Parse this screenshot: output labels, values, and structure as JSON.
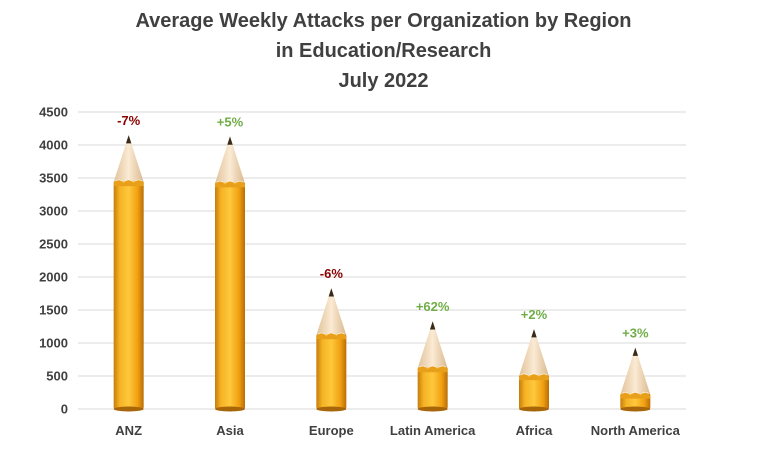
{
  "chart_data": {
    "type": "bar",
    "title": [
      "Average Weekly Attacks per Organization by Region",
      "in Education/Research",
      "July 2022"
    ],
    "xlabel": "",
    "ylabel": "",
    "categories": [
      "ANZ",
      "Asia",
      "Europe",
      "Latin America",
      "Africa",
      "North America"
    ],
    "values": [
      4150,
      4130,
      1830,
      1330,
      1210,
      930
    ],
    "data_labels": [
      "-7%",
      "+5%",
      "-6%",
      "+62%",
      "+2%",
      "+3%"
    ],
    "label_colors": [
      "#8b0000",
      "#70ad47",
      "#8b0000",
      "#70ad47",
      "#70ad47",
      "#70ad47"
    ],
    "ylim": [
      0,
      4500
    ],
    "yticks": [
      0,
      500,
      1000,
      1500,
      2000,
      2500,
      3000,
      3500,
      4000,
      4500
    ],
    "grid": true,
    "colors": {
      "pencil_body": "#f2a413",
      "pencil_shade": "#c77d0a",
      "pencil_wood": "#f3dcc0",
      "pencil_lead": "#3a2a1a",
      "grid": "#d9d9d9"
    }
  }
}
